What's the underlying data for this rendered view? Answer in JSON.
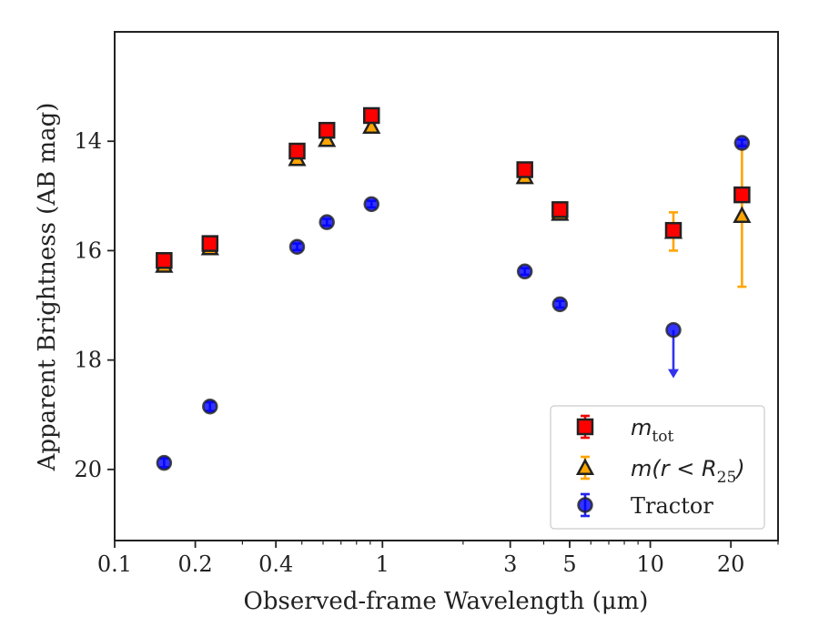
{
  "chart_data": {
    "type": "scatter",
    "title": "",
    "xlabel": "Observed-frame Wavelength (μm)",
    "ylabel": "Apparent Brightness (AB mag)",
    "xscale": "log",
    "xlim": [
      0.1,
      30
    ],
    "ylim": [
      21.3,
      12.0
    ],
    "y_inverted": true,
    "xticks": [
      {
        "value": 0.1,
        "label": "0.1"
      },
      {
        "value": 0.2,
        "label": "0.2"
      },
      {
        "value": 0.4,
        "label": "0.4"
      },
      {
        "value": 1,
        "label": "1"
      },
      {
        "value": 3,
        "label": "3"
      },
      {
        "value": 5,
        "label": "5"
      },
      {
        "value": 10,
        "label": "10"
      },
      {
        "value": 20,
        "label": "20"
      }
    ],
    "yticks": [
      {
        "value": 14,
        "label": "14"
      },
      {
        "value": 16,
        "label": "16"
      },
      {
        "value": 18,
        "label": "18"
      },
      {
        "value": 20,
        "label": "20"
      }
    ],
    "grid": false,
    "legend_position": "lower-right",
    "series": [
      {
        "name": "m_tot",
        "legend_main": "m",
        "legend_sub": "tot",
        "marker": "square",
        "color": "#ff0000",
        "edge": "#222222",
        "points": [
          {
            "x": 0.153,
            "y": 16.18,
            "err": 0.06
          },
          {
            "x": 0.227,
            "y": 15.87,
            "err": 0.06
          },
          {
            "x": 0.48,
            "y": 14.18,
            "err": 0.05
          },
          {
            "x": 0.62,
            "y": 13.8,
            "err": 0.05
          },
          {
            "x": 0.91,
            "y": 13.53,
            "err": 0.05
          },
          {
            "x": 3.4,
            "y": 14.52,
            "err": 0.05
          },
          {
            "x": 4.6,
            "y": 15.25,
            "err": 0.05
          },
          {
            "x": 12.2,
            "y": 15.63,
            "err": 0.06
          },
          {
            "x": 22.0,
            "y": 14.98,
            "err": 0.06
          }
        ]
      },
      {
        "name": "m(r < R_25)",
        "legend_main": "m(r < R",
        "legend_sub": "25",
        "legend_tail": ")",
        "marker": "triangle",
        "color": "#ffa500",
        "edge": "#222222",
        "points": [
          {
            "x": 0.153,
            "y": 16.27,
            "err": 0.06
          },
          {
            "x": 0.227,
            "y": 15.95,
            "err": 0.06
          },
          {
            "x": 0.48,
            "y": 14.32,
            "err": 0.05
          },
          {
            "x": 0.62,
            "y": 13.97,
            "err": 0.05
          },
          {
            "x": 0.91,
            "y": 13.73,
            "err": 0.05
          },
          {
            "x": 3.4,
            "y": 14.65,
            "err": 0.05
          },
          {
            "x": 4.6,
            "y": 15.32,
            "err": 0.05
          },
          {
            "x": 12.2,
            "y": 15.65,
            "err": 0.35
          },
          {
            "x": 22.0,
            "y": 15.36,
            "err": 1.3
          }
        ]
      },
      {
        "name": "Tractor",
        "legend_main": "Tractor",
        "marker": "circle",
        "color": "#0000ff",
        "edge": "#222222",
        "points": [
          {
            "x": 0.153,
            "y": 19.88,
            "err": 0.08
          },
          {
            "x": 0.227,
            "y": 18.85,
            "err": 0.08
          },
          {
            "x": 0.48,
            "y": 15.93,
            "err": 0.06
          },
          {
            "x": 0.62,
            "y": 15.48,
            "err": 0.06
          },
          {
            "x": 0.91,
            "y": 15.15,
            "err": 0.06
          },
          {
            "x": 3.4,
            "y": 16.38,
            "err": 0.06
          },
          {
            "x": 4.6,
            "y": 16.98,
            "err": 0.06
          },
          {
            "x": 12.2,
            "y": 17.45,
            "err": 0.0,
            "limit": "upper",
            "limit_to": 18.3
          },
          {
            "x": 22.0,
            "y": 14.03,
            "err": 0.06
          }
        ]
      }
    ]
  }
}
